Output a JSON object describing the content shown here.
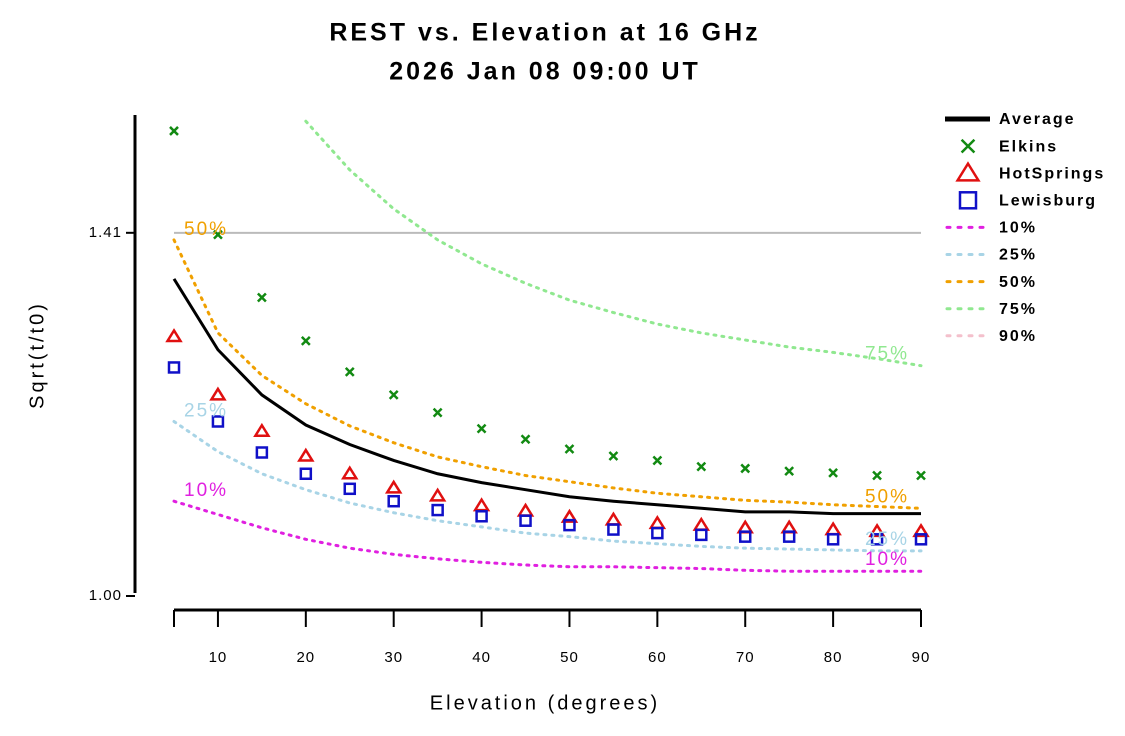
{
  "chart_data": {
    "type": "line",
    "title": "REST vs. Elevation at 16 GHz",
    "subtitle": "2026 Jan 08 09:00 UT",
    "x_label": "Elevation (degrees)",
    "y_label": "Sqrt(t/t0)",
    "x": [
      5,
      10,
      15,
      20,
      25,
      30,
      35,
      40,
      45,
      50,
      55,
      60,
      65,
      70,
      75,
      80,
      85,
      90
    ],
    "xlim": [
      5,
      90
    ],
    "xticks": [
      10,
      20,
      30,
      40,
      50,
      60,
      70,
      80,
      90
    ],
    "ylim": [
      1.0,
      1.543
    ],
    "yticks": [
      {
        "value": 1.0,
        "label": "1.00"
      },
      1.41
    ],
    "hlines": [
      1.41
    ],
    "hline_color": "#bbbbbb",
    "legend": "right",
    "series": [
      {
        "name": "Average",
        "color": "#000000",
        "marker": "line",
        "values": [
          1.358,
          1.278,
          1.227,
          1.193,
          1.171,
          1.153,
          1.138,
          1.128,
          1.12,
          1.112,
          1.107,
          1.103,
          1.099,
          1.095,
          1.095,
          1.093,
          1.093,
          1.093
        ]
      },
      {
        "name": "Elkins",
        "color": "#128a12",
        "marker": "x",
        "values": [
          1.525,
          1.408,
          1.337,
          1.288,
          1.253,
          1.227,
          1.207,
          1.189,
          1.177,
          1.166,
          1.158,
          1.153,
          1.146,
          1.144,
          1.141,
          1.139,
          1.136,
          1.136
        ]
      },
      {
        "name": "HotSprings",
        "color": "#e01010",
        "marker": "triangle",
        "values": [
          1.293,
          1.227,
          1.186,
          1.158,
          1.138,
          1.122,
          1.113,
          1.102,
          1.096,
          1.089,
          1.086,
          1.082,
          1.08,
          1.077,
          1.077,
          1.075,
          1.073,
          1.073
        ]
      },
      {
        "name": "Lewisburg",
        "color": "#1010c8",
        "marker": "square",
        "values": [
          1.258,
          1.197,
          1.162,
          1.138,
          1.121,
          1.107,
          1.097,
          1.09,
          1.085,
          1.08,
          1.075,
          1.071,
          1.069,
          1.067,
          1.067,
          1.064,
          1.064,
          1.064
        ]
      },
      {
        "name": "10%",
        "color": "#e020e0",
        "marker": "dotted",
        "labeled": true,
        "values": [
          1.107,
          1.092,
          1.077,
          1.064,
          1.054,
          1.047,
          1.042,
          1.038,
          1.035,
          1.033,
          1.033,
          1.032,
          1.031,
          1.029,
          1.028,
          1.028,
          1.028,
          1.028
        ]
      },
      {
        "name": "25%",
        "color": "#a8d4e6",
        "marker": "dotted",
        "labeled": true,
        "values": [
          1.197,
          1.163,
          1.138,
          1.12,
          1.105,
          1.094,
          1.085,
          1.078,
          1.071,
          1.067,
          1.062,
          1.059,
          1.056,
          1.054,
          1.053,
          1.052,
          1.051,
          1.051
        ]
      },
      {
        "name": "50%",
        "color": "#f0a000",
        "marker": "dotted",
        "labeled": true,
        "values": [
          1.402,
          1.297,
          1.249,
          1.217,
          1.192,
          1.173,
          1.157,
          1.146,
          1.136,
          1.129,
          1.122,
          1.116,
          1.112,
          1.108,
          1.106,
          1.103,
          1.101,
          1.099
        ]
      },
      {
        "name": "75%",
        "color": "#90e890",
        "marker": "dotted",
        "labeled": true,
        "values": [
          null,
          null,
          null,
          1.536,
          1.481,
          1.437,
          1.402,
          1.375,
          1.353,
          1.334,
          1.32,
          1.307,
          1.297,
          1.289,
          1.281,
          1.275,
          1.268,
          1.26
        ]
      },
      {
        "name": "90%",
        "color": "#f4c0cc",
        "marker": "dotted",
        "values": [
          null,
          null,
          null,
          null,
          null,
          null,
          null,
          null,
          null,
          null,
          null,
          null,
          null,
          null,
          null,
          null,
          null,
          null
        ]
      }
    ]
  }
}
